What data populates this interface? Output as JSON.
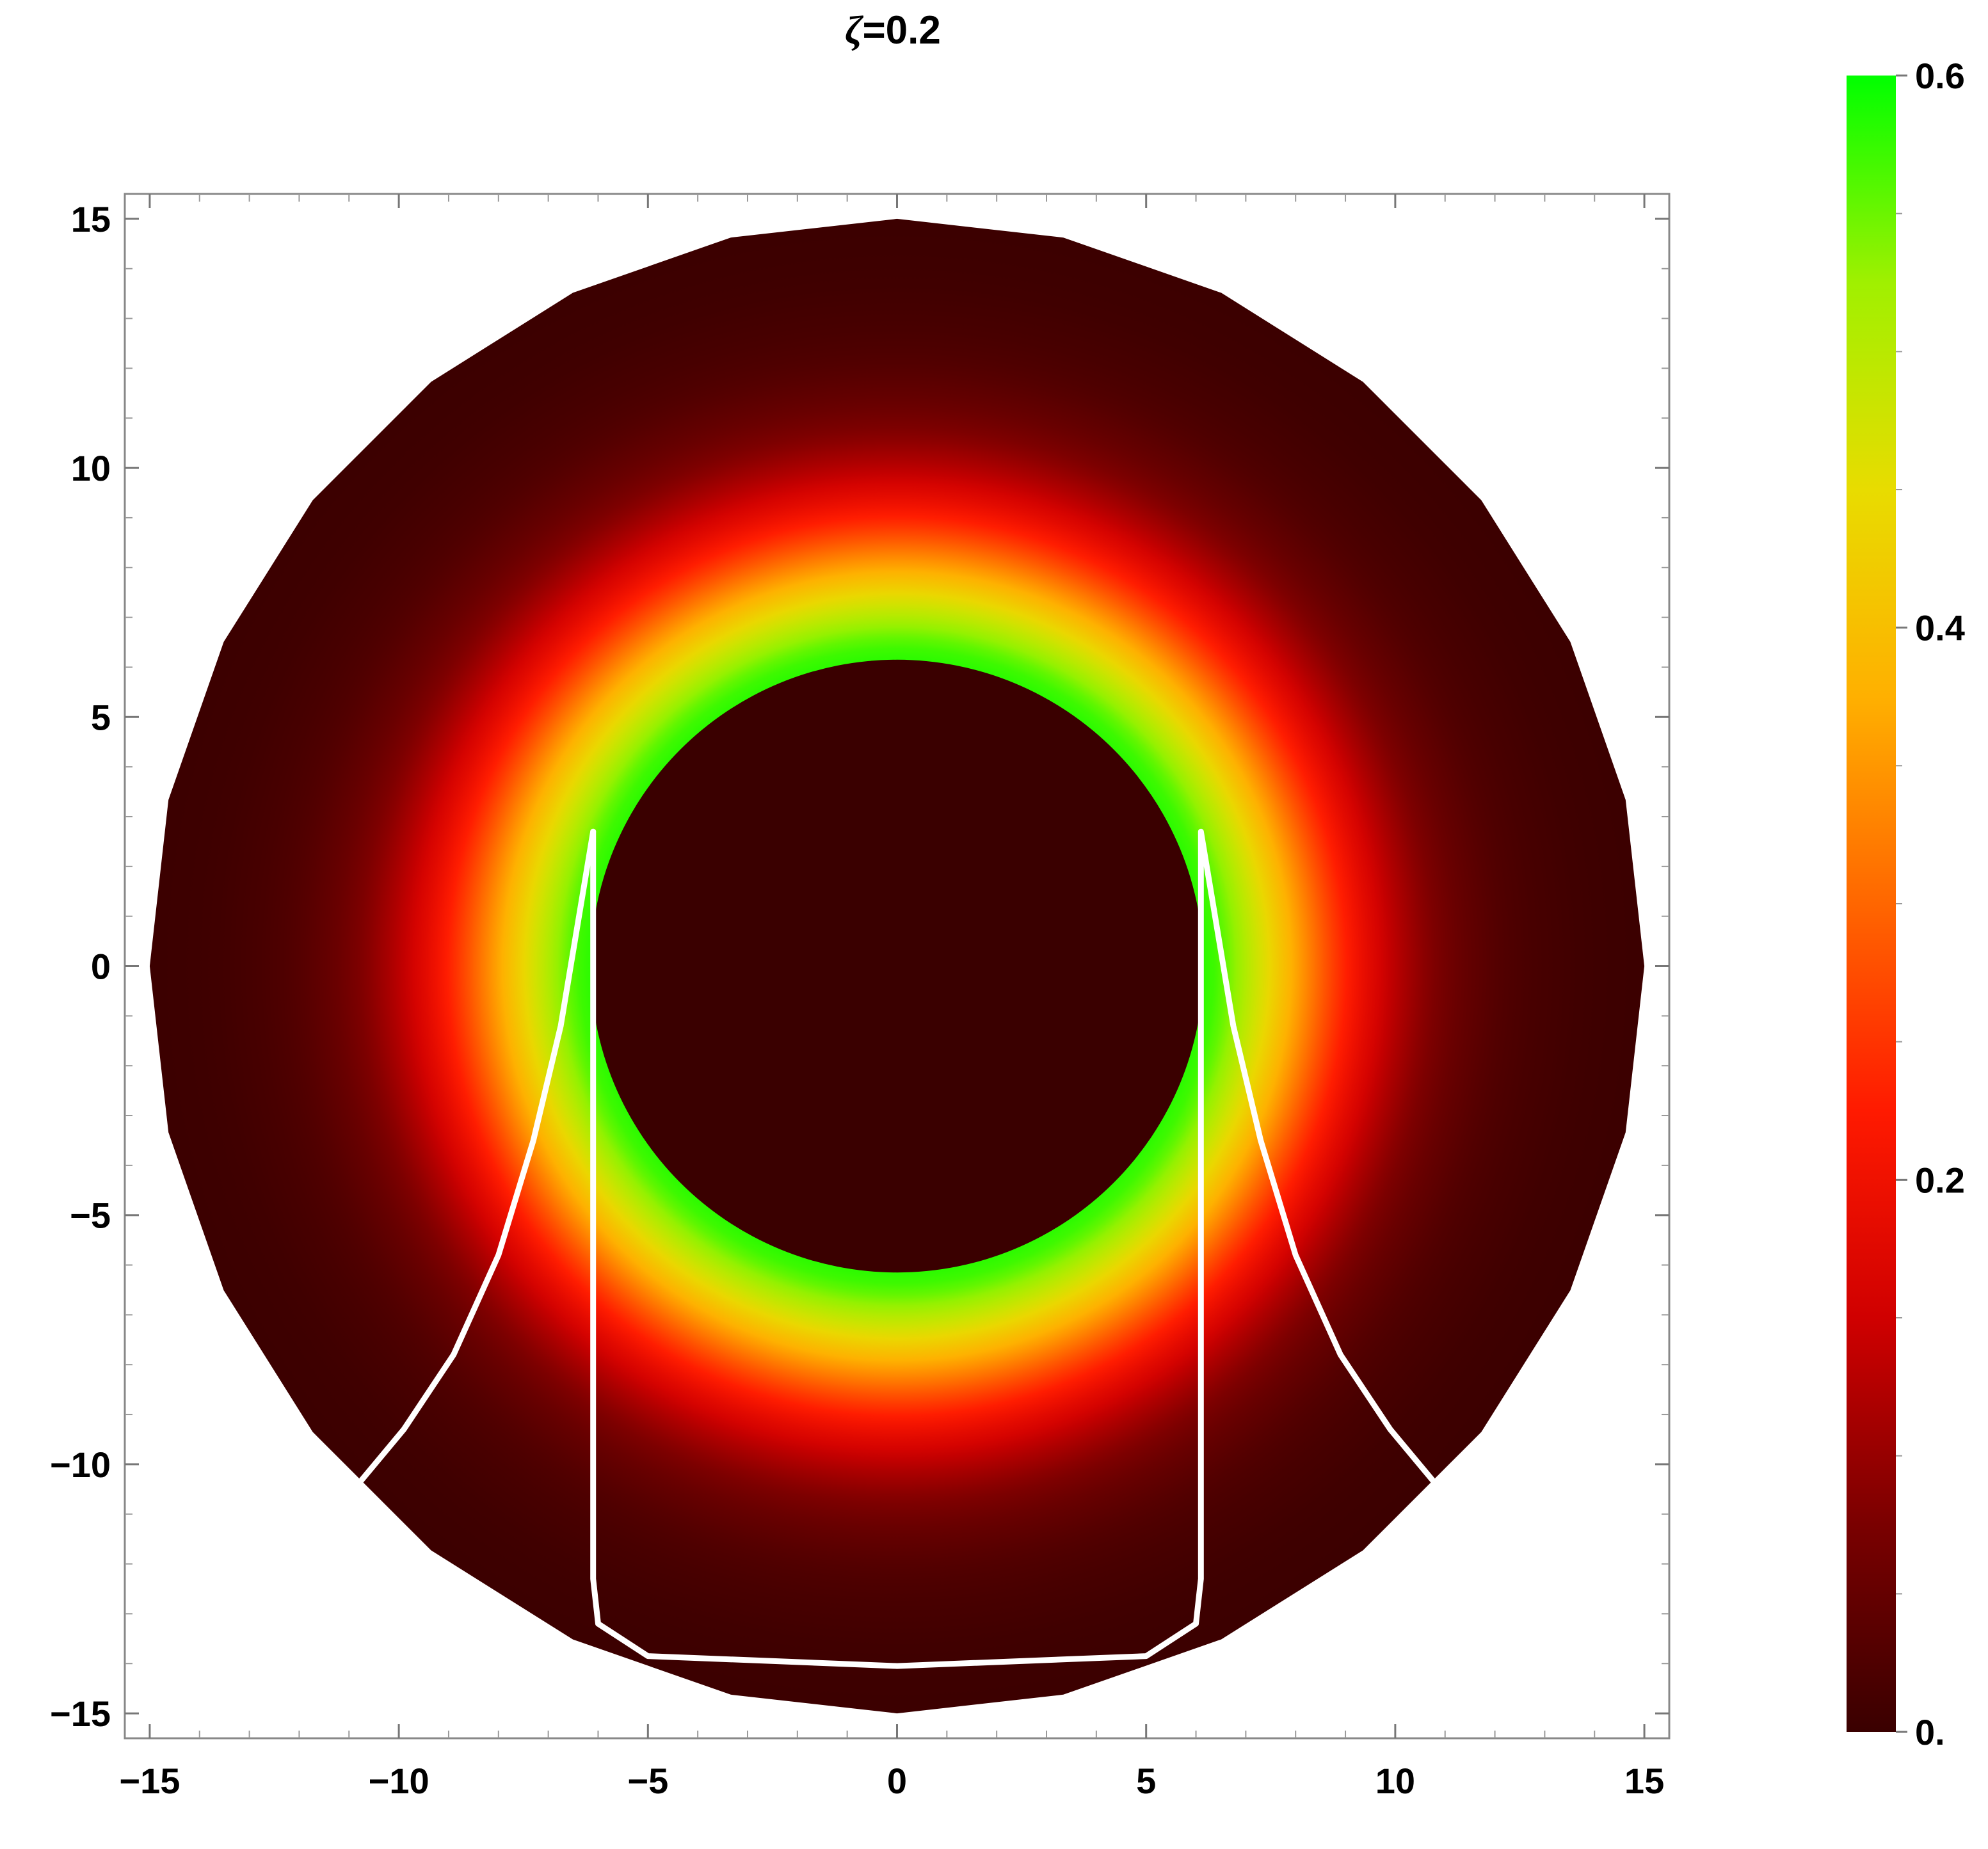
{
  "chart_data": {
    "type": "heatmap",
    "title_symbol": "ζ",
    "title_value": "=0.2",
    "xlabel": "",
    "ylabel": "",
    "xlim": [
      -15.5,
      15.5
    ],
    "ylim": [
      -15.5,
      15.5
    ],
    "x_ticks": [
      -15,
      -10,
      -5,
      0,
      5,
      10,
      15
    ],
    "x_tick_labels": [
      "−15",
      "−10",
      "−5",
      "0",
      "5",
      "10",
      "15"
    ],
    "y_ticks": [
      15,
      10,
      5,
      0,
      -5,
      -10,
      -15
    ],
    "y_tick_labels": [
      "15",
      "10",
      "5",
      "0",
      "−5",
      "−10",
      "−15"
    ],
    "disk_outer_radius": 15,
    "disk_polygon_sides": 28,
    "shadow_radius": 6.15,
    "intensity_peak": 0.58,
    "intensity_falloff_width": 3.0,
    "colorbar": {
      "min": 0,
      "max": 0.6,
      "ticks": [
        0.6,
        0.4,
        0.2,
        0
      ],
      "tick_labels": [
        "0.6",
        "0.4",
        "0.2",
        "0."
      ],
      "colors": [
        "#3a0000",
        "#7a0000",
        "#d00000",
        "#ff1a00",
        "#ff6600",
        "#ffb000",
        "#e8dc00",
        "#a0f000",
        "#00ff00"
      ]
    },
    "grid": false,
    "overlay_curves": [
      {
        "name": "inner-closed-curve",
        "color": "#ffffff",
        "points": [
          [
            -6.1,
            2.7
          ],
          [
            -6.1,
            -12.3
          ],
          [
            -6.0,
            -13.2
          ],
          [
            -5.0,
            -13.85
          ],
          [
            0,
            -14.05
          ],
          [
            5.0,
            -13.85
          ],
          [
            6.0,
            -13.2
          ],
          [
            6.1,
            -12.3
          ],
          [
            6.1,
            2.7
          ],
          [
            6.35,
            1.2
          ],
          [
            6.75,
            -1.2
          ],
          [
            7.3,
            -3.5
          ],
          [
            8.0,
            -5.8
          ],
          [
            8.9,
            -7.8
          ],
          [
            9.9,
            -9.3
          ],
          [
            10.9,
            -10.5
          ]
        ]
      },
      {
        "name": "left-outer-curve",
        "color": "#ffffff",
        "points": [
          [
            -6.1,
            2.7
          ],
          [
            -6.35,
            1.2
          ],
          [
            -6.75,
            -1.2
          ],
          [
            -7.3,
            -3.5
          ],
          [
            -8.0,
            -5.8
          ],
          [
            -8.9,
            -7.8
          ],
          [
            -9.9,
            -9.3
          ],
          [
            -10.9,
            -10.5
          ]
        ]
      }
    ]
  }
}
